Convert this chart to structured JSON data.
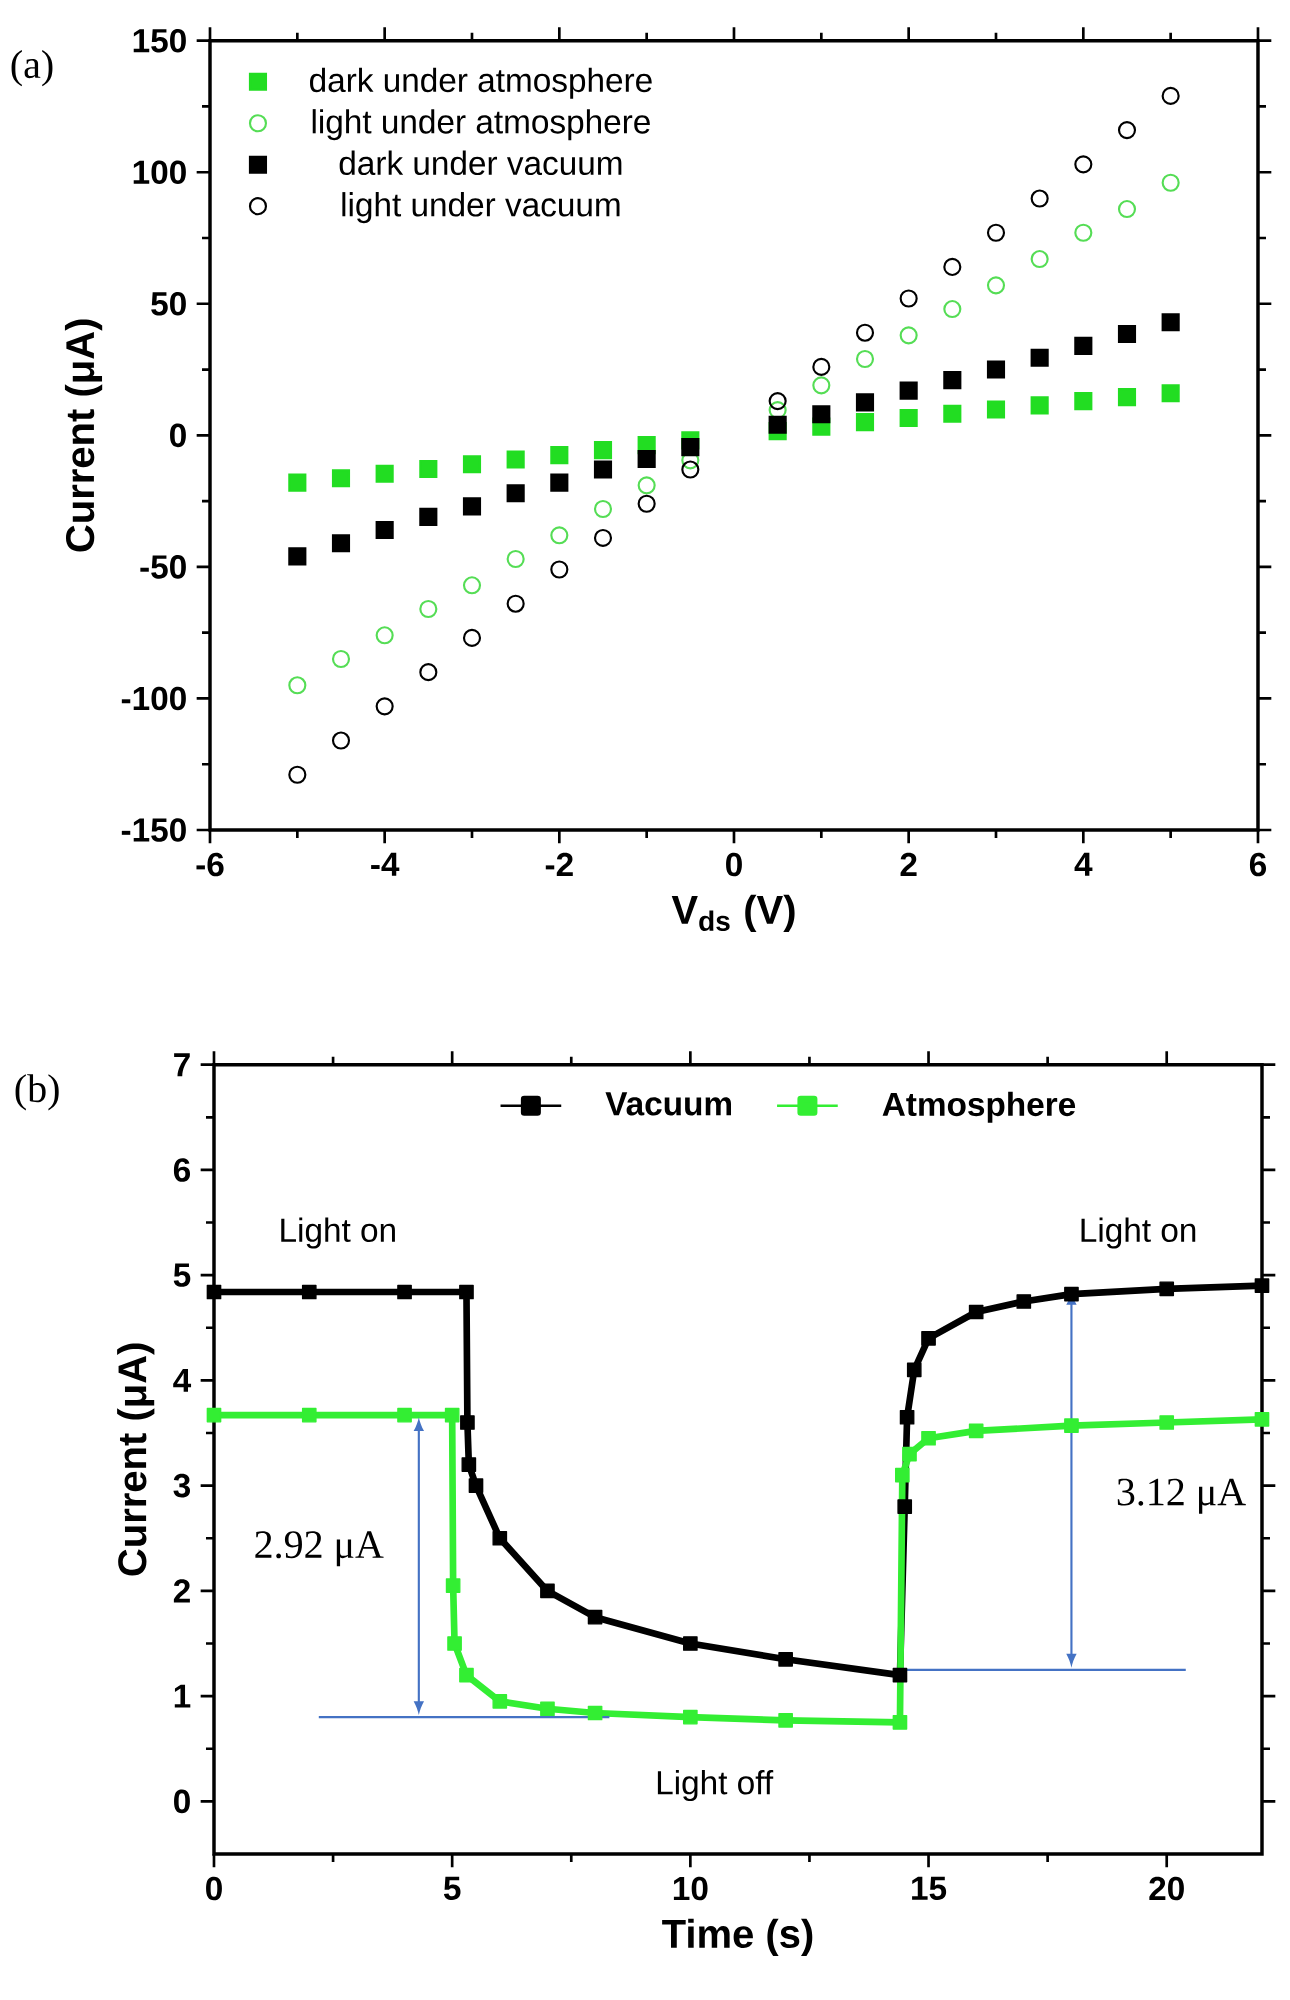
{
  "chart_data": [
    {
      "type": "scatter",
      "xlabel": "V$_{ds}$ (V)",
      "ylabel": "Current (μA)",
      "xlim": [
        -6,
        6
      ],
      "ylim": [
        -150,
        150
      ],
      "xticks": [
        -6,
        -4,
        -2,
        0,
        2,
        4,
        6
      ],
      "yticks": [
        -150,
        -100,
        -50,
        0,
        50,
        100,
        150
      ],
      "legend": "top left",
      "grid": false,
      "annotations": [
        "(a)"
      ],
      "x": [
        -5,
        -4.5,
        -4,
        -3.5,
        -3,
        -2.5,
        -2,
        -1.5,
        -1,
        -0.5,
        0.5,
        1,
        1.5,
        2,
        2.5,
        3,
        3.5,
        4,
        4.5,
        5
      ],
      "series": [
        {
          "name": "dark under atmosphere",
          "color": "#22dd22",
          "marker": "square",
          "values": [
            -18,
            -16.3,
            -14.6,
            -12.8,
            -11,
            -9.2,
            -7.5,
            -5.6,
            -3.7,
            -1.9,
            1.6,
            3.3,
            5,
            6.6,
            8.2,
            9.8,
            11.4,
            13,
            14.5,
            16
          ]
        },
        {
          "name": "light under atmosphere",
          "color": "#55dd55",
          "marker": "circle",
          "values": [
            -95,
            -85,
            -76,
            -66,
            -57,
            -47,
            -38,
            -28,
            -19,
            -9.5,
            9.6,
            19,
            29,
            38,
            48,
            57,
            67,
            77,
            86,
            96
          ]
        },
        {
          "name": "dark under vacuum",
          "color": "#000000",
          "marker": "square",
          "values": [
            -46,
            -41,
            -36,
            -31,
            -27,
            -22,
            -18,
            -13,
            -9,
            -4.5,
            4,
            8,
            12.5,
            17,
            21,
            25,
            29.5,
            34,
            38.5,
            43
          ]
        },
        {
          "name": "light under vacuum",
          "color": "#000000",
          "marker": "circle",
          "values": [
            -129,
            -116,
            -103,
            -90,
            -77,
            -64,
            -51,
            -39,
            -26,
            -13,
            13,
            26,
            39,
            52,
            64,
            77,
            90,
            103,
            116,
            129
          ]
        }
      ]
    },
    {
      "type": "line",
      "xlabel": "Time (s)",
      "ylabel": "Current (μA)",
      "xlim": [
        0,
        22
      ],
      "ylim": [
        -0.5,
        7
      ],
      "xticks": [
        0,
        5,
        10,
        15,
        20
      ],
      "yticks": [
        0,
        1,
        2,
        3,
        4,
        5,
        6,
        7
      ],
      "legend": "top",
      "grid": false,
      "annotations": [
        "(b)",
        "Light on",
        "Light on",
        "Light off",
        "2.92 μA",
        "3.12 μA"
      ],
      "series": [
        {
          "name": "Vacuum",
          "color": "#000000",
          "marker": "square",
          "x": [
            0,
            2,
            4,
            5.3,
            5.32,
            5.35,
            5.5,
            6,
            7,
            8,
            10,
            12,
            14.4,
            14.5,
            14.55,
            14.7,
            15,
            16,
            17,
            18,
            20,
            22
          ],
          "values": [
            4.84,
            4.84,
            4.84,
            4.84,
            3.6,
            3.2,
            3.0,
            2.5,
            2.0,
            1.75,
            1.5,
            1.35,
            1.2,
            2.8,
            3.65,
            4.1,
            4.4,
            4.65,
            4.75,
            4.82,
            4.87,
            4.9
          ]
        },
        {
          "name": "Atmosphere",
          "color": "#33ee33",
          "marker": "square",
          "x": [
            0,
            2,
            4,
            5.0,
            5.02,
            5.05,
            5.3,
            6,
            7,
            8,
            10,
            12,
            14.4,
            14.45,
            14.6,
            15,
            16,
            18,
            20,
            22
          ],
          "values": [
            3.67,
            3.67,
            3.67,
            3.67,
            2.05,
            1.5,
            1.2,
            0.95,
            0.88,
            0.84,
            0.8,
            0.77,
            0.75,
            3.1,
            3.3,
            3.45,
            3.52,
            3.57,
            3.6,
            3.63
          ]
        },
        {
          "color": "#4472c4",
          "marker": "none",
          "x": [
            2.2,
            8.3
          ],
          "values": [
            0.8,
            0.8
          ]
        },
        {
          "color": "#4472c4",
          "marker": "none",
          "x": [
            14.5,
            20.4
          ],
          "values": [
            1.25,
            1.25
          ]
        }
      ]
    }
  ]
}
